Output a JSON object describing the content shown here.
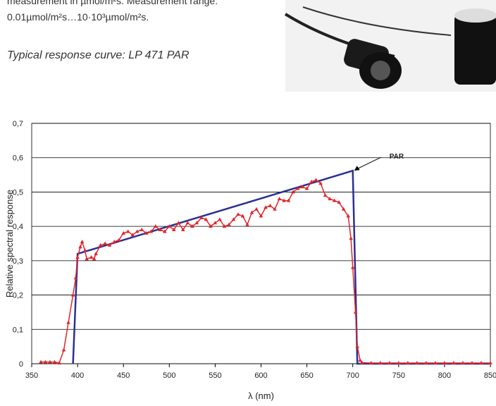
{
  "document": {
    "lines": [
      "measurement in µmol/m²s. Measurement range:",
      "0.01µmol/m²s…10·10³µmol/m²s."
    ],
    "caption": "Typical response curve: LP 471 PAR"
  },
  "chart_data": {
    "type": "line",
    "xlabel": "λ (nm)",
    "ylabel": "Relative spectral response",
    "xlim": [
      350,
      850
    ],
    "xticks": [
      350,
      400,
      450,
      500,
      550,
      600,
      650,
      700,
      750,
      800,
      850
    ],
    "ylim": [
      0,
      0.7
    ],
    "yticks": [
      0,
      {
        "value": 0.1,
        "label": "0,1"
      },
      {
        "value": 0.2,
        "label": "0,2"
      },
      {
        "value": 0.3,
        "label": "0,3"
      },
      {
        "value": 0.4,
        "label": "0,4"
      },
      {
        "value": 0.5,
        "label": "0,5"
      },
      {
        "value": 0.6,
        "label": "0,6"
      },
      {
        "value": 0.7,
        "label": "0,7"
      }
    ],
    "grid": true,
    "annotation": {
      "text": "PAR",
      "x": 700,
      "y": 0.56
    },
    "series": [
      {
        "color": "#2b2f93",
        "markers": false,
        "x": [
          395,
          400,
          700,
          705,
          850
        ],
        "values": [
          0,
          0.32,
          0.562,
          0,
          0
        ]
      },
      {
        "color": "#e0262b",
        "markers": true,
        "x": [
          360,
          365,
          370,
          375,
          380,
          385,
          390,
          395,
          398,
          400,
          403,
          405,
          408,
          410,
          415,
          418,
          420,
          425,
          430,
          435,
          440,
          445,
          450,
          455,
          460,
          465,
          470,
          475,
          480,
          485,
          490,
          495,
          500,
          505,
          510,
          515,
          520,
          525,
          530,
          535,
          540,
          545,
          550,
          555,
          560,
          565,
          570,
          575,
          580,
          585,
          590,
          595,
          600,
          605,
          610,
          615,
          620,
          625,
          630,
          635,
          640,
          645,
          650,
          655,
          660,
          665,
          670,
          675,
          680,
          685,
          690,
          695,
          698,
          700,
          703,
          705,
          708,
          710,
          720,
          730,
          740,
          750,
          760,
          770,
          780,
          790,
          800,
          810,
          820,
          830,
          840,
          850
        ],
        "values": [
          0.005,
          0.005,
          0.005,
          0.005,
          0.002,
          0.04,
          0.12,
          0.2,
          0.25,
          0.31,
          0.34,
          0.355,
          0.33,
          0.305,
          0.31,
          0.305,
          0.32,
          0.345,
          0.35,
          0.345,
          0.355,
          0.36,
          0.38,
          0.385,
          0.375,
          0.385,
          0.39,
          0.38,
          0.385,
          0.4,
          0.39,
          0.385,
          0.4,
          0.39,
          0.41,
          0.39,
          0.41,
          0.4,
          0.41,
          0.425,
          0.42,
          0.4,
          0.41,
          0.42,
          0.4,
          0.405,
          0.42,
          0.435,
          0.43,
          0.405,
          0.44,
          0.45,
          0.43,
          0.455,
          0.46,
          0.45,
          0.48,
          0.475,
          0.475,
          0.5,
          0.51,
          0.515,
          0.51,
          0.53,
          0.535,
          0.525,
          0.49,
          0.48,
          0.475,
          0.47,
          0.45,
          0.43,
          0.365,
          0.28,
          0.15,
          0.05,
          0.01,
          0.003,
          0.002,
          0.002,
          0.002,
          0.002,
          0.002,
          0.002,
          0.002,
          0.002,
          0.002,
          0.002,
          0.002,
          0.002,
          0.002,
          0.002
        ]
      }
    ]
  }
}
